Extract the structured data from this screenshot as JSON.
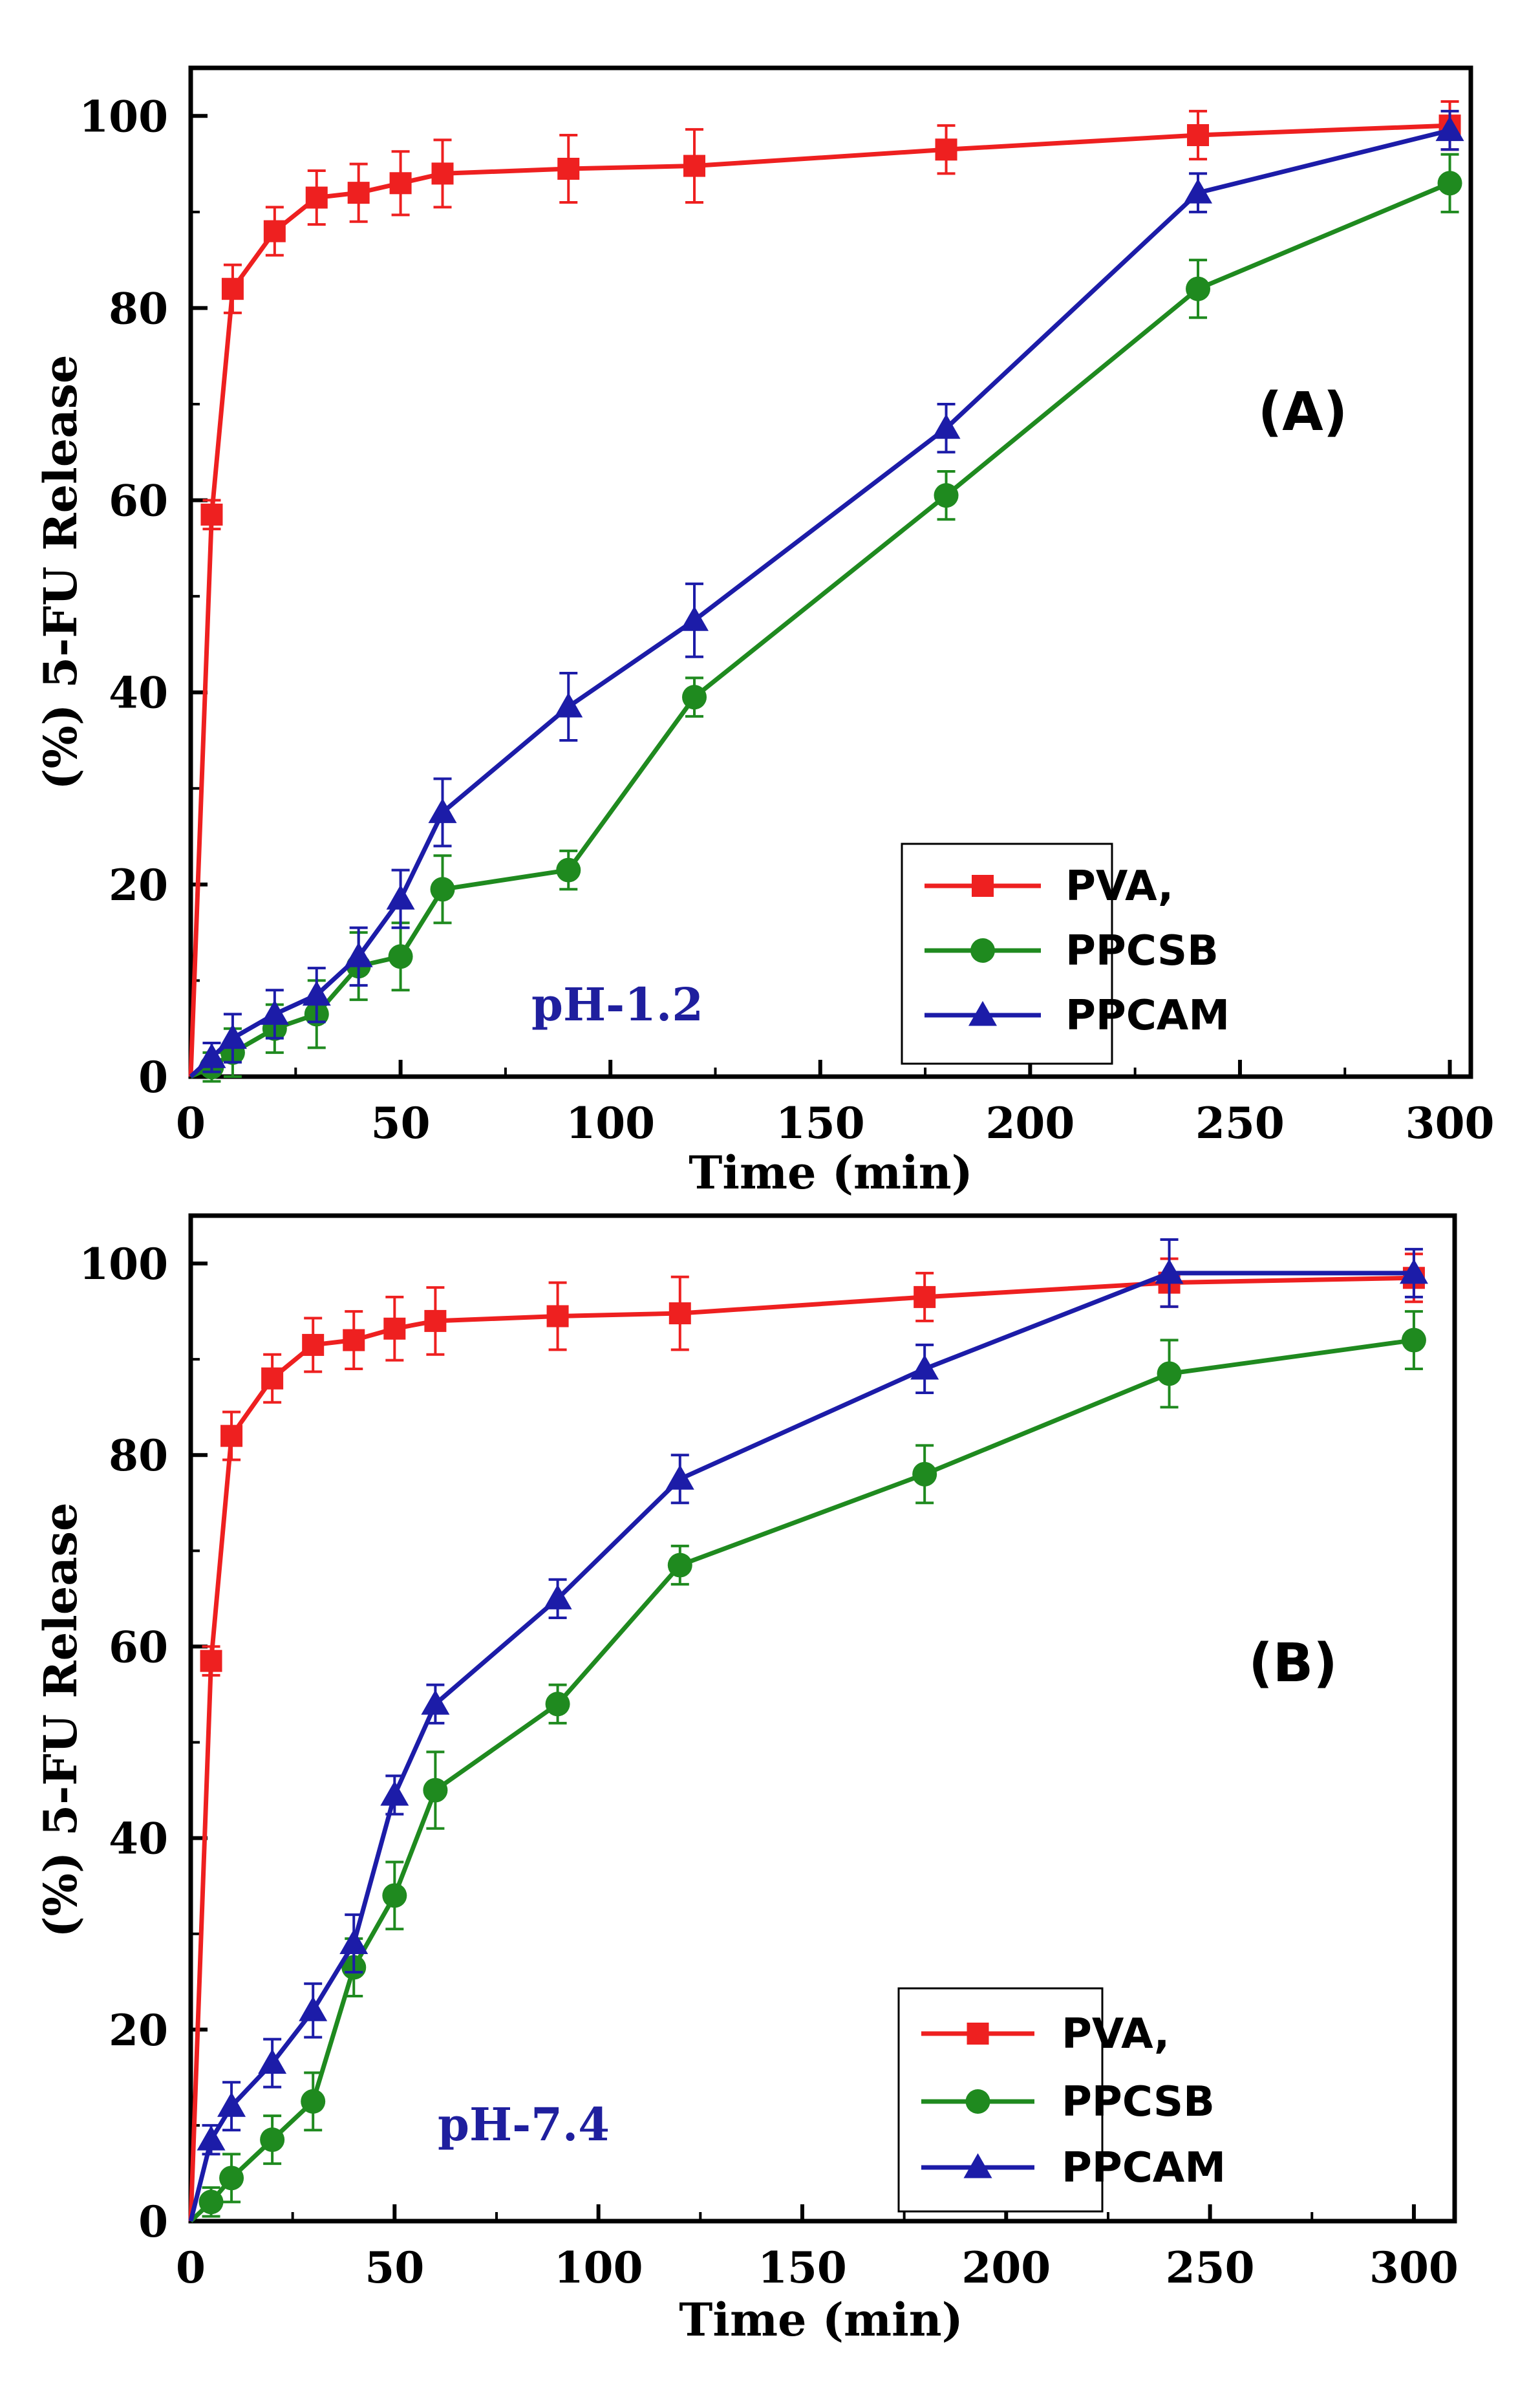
{
  "chart_data": [
    {
      "type": "line",
      "panel_label": "(A)",
      "annotation": "pH-1.2",
      "xlabel": "Time (min)",
      "ylabel": "(%) 5-FU Release",
      "xlim": [
        0,
        305
      ],
      "ylim": [
        0,
        105
      ],
      "x_ticks": [
        0,
        50,
        100,
        150,
        200,
        250,
        300
      ],
      "y_ticks": [
        0,
        20,
        40,
        60,
        80,
        100
      ],
      "grid": false,
      "legend_position": "bottom-right",
      "x": [
        0,
        5,
        10,
        20,
        30,
        40,
        50,
        60,
        90,
        120,
        180,
        240,
        300
      ],
      "series": [
        {
          "name": "PVA,",
          "marker": "square",
          "color": "#ee2020",
          "values": [
            0,
            58.5,
            82,
            88,
            91.5,
            92,
            93,
            94,
            94.5,
            94.8,
            96.5,
            98,
            99
          ],
          "errors": [
            0,
            1.5,
            2.5,
            2.5,
            2.8,
            3,
            3.3,
            3.5,
            3.5,
            3.8,
            2.5,
            2.5,
            2.5
          ]
        },
        {
          "name": "PPCSB",
          "marker": "circle",
          "color": "#1f8a1f",
          "values": [
            0,
            1,
            2.5,
            5,
            6.5,
            11.5,
            12.5,
            19.5,
            21.5,
            39.5,
            60.5,
            82,
            93
          ],
          "errors": [
            0,
            1.5,
            2.5,
            2.5,
            3.5,
            3.5,
            3.5,
            3.5,
            2,
            2,
            2.5,
            3,
            3
          ]
        },
        {
          "name": "PPCAM",
          "marker": "triangle",
          "color": "#1c1ca8",
          "values": [
            0,
            2,
            4,
            6.5,
            8.5,
            12.5,
            18.5,
            27.5,
            38.5,
            47.5,
            67.5,
            92,
            98.5
          ],
          "errors": [
            0,
            1.5,
            2.5,
            2.5,
            2.8,
            3,
            3,
            3.5,
            3.5,
            3.8,
            2.5,
            2,
            2
          ]
        }
      ]
    },
    {
      "type": "line",
      "panel_label": "(B)",
      "annotation": "pH-7.4",
      "xlabel": "Time (min)",
      "ylabel": "(%) 5-FU Release",
      "xlim": [
        0,
        310
      ],
      "ylim": [
        0,
        105
      ],
      "x_ticks": [
        0,
        50,
        100,
        150,
        200,
        250,
        300
      ],
      "y_ticks": [
        0,
        20,
        40,
        60,
        80,
        100
      ],
      "grid": false,
      "legend_position": "bottom-right",
      "x": [
        0,
        5,
        10,
        20,
        30,
        40,
        50,
        60,
        90,
        120,
        180,
        240,
        300
      ],
      "series": [
        {
          "name": "PVA,",
          "marker": "square",
          "color": "#ee2020",
          "values": [
            0,
            58.5,
            82,
            88,
            91.5,
            92,
            93.2,
            94,
            94.5,
            94.8,
            96.5,
            98,
            98.5
          ],
          "errors": [
            0,
            1.5,
            2.5,
            2.5,
            2.8,
            3,
            3.3,
            3.5,
            3.5,
            3.8,
            2.5,
            2.5,
            2.5
          ]
        },
        {
          "name": "PPCSB",
          "marker": "circle",
          "color": "#1f8a1f",
          "values": [
            0,
            2,
            4.5,
            8.5,
            12.5,
            26.5,
            34,
            45,
            54,
            68.5,
            78,
            88.5,
            92
          ],
          "errors": [
            0,
            1.5,
            2.5,
            2.5,
            3,
            3,
            3.5,
            4,
            2,
            2,
            3,
            3.5,
            3
          ]
        },
        {
          "name": "PPCAM",
          "marker": "triangle",
          "color": "#1c1ca8",
          "values": [
            0,
            8.5,
            12,
            16.5,
            22,
            29,
            44.5,
            54,
            65,
            77.5,
            89,
            99,
            99
          ],
          "errors": [
            0,
            1.5,
            2.5,
            2.5,
            2.8,
            3,
            2,
            2,
            2,
            2.5,
            2.5,
            3.5,
            2.5
          ]
        }
      ]
    }
  ]
}
